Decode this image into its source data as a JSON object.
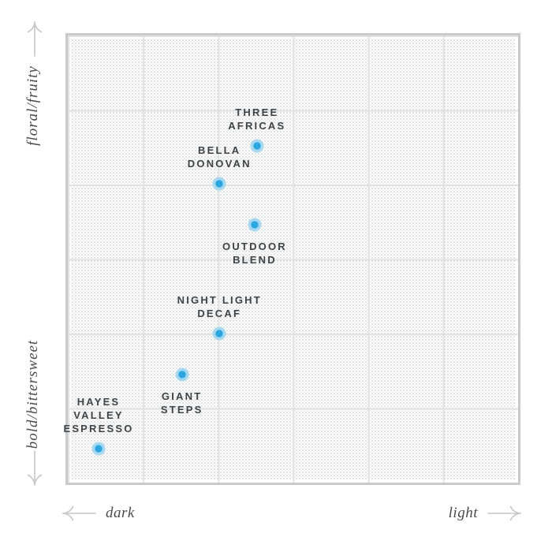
{
  "chart_data": {
    "type": "scatter",
    "title": "",
    "x_axis": {
      "min_label": "dark",
      "max_label": "light",
      "range": [
        0,
        6
      ]
    },
    "y_axis": {
      "min_label": "bold/bittersweet",
      "max_label": "floral/fruity",
      "range": [
        0,
        6
      ]
    },
    "grid": {
      "rows": 6,
      "columns": 6,
      "texture": "dotted-paper"
    },
    "legend": {
      "visible": false
    },
    "points": [
      {
        "name": "Three Africas",
        "label_lines": [
          "THREE",
          "AFRICAS"
        ],
        "x": 2.52,
        "y": 4.52,
        "label_position": "above"
      },
      {
        "name": "Bella Donovan",
        "label_lines": [
          "BELLA",
          "DONOVAN"
        ],
        "x": 2.02,
        "y": 4.01,
        "label_position": "above"
      },
      {
        "name": "Outdoor Blend",
        "label_lines": [
          "OUTDOOR",
          "BLEND"
        ],
        "x": 2.49,
        "y": 3.46,
        "label_position": "below"
      },
      {
        "name": "Night Light Decaf",
        "label_lines": [
          "NIGHT LIGHT",
          "DECAF"
        ],
        "x": 2.02,
        "y": 2.0,
        "label_position": "above"
      },
      {
        "name": "Giant Steps",
        "label_lines": [
          "GIANT",
          "STEPS"
        ],
        "x": 1.52,
        "y": 1.45,
        "label_position": "below"
      },
      {
        "name": "Hayes Valley Espresso",
        "label_lines": [
          "HAYES",
          "VALLEY",
          "ESPRESSO"
        ],
        "x": 0.41,
        "y": 0.45,
        "label_position": "above"
      }
    ]
  },
  "icons": {
    "y_axis_top": "arrow-up-icon",
    "y_axis_bottom": "arrow-down-icon",
    "x_axis_left": "arrow-left-icon",
    "x_axis_right": "arrow-right-icon"
  },
  "colors": {
    "dot_fill": "#2ba6df",
    "dot_halo": "#a7d8f1",
    "label_text": "#3d4347",
    "axis_text": "#4c4c4c",
    "arrow_color": "#c7c7c7",
    "grid_border": "#c8cbcd",
    "grid_line": "#dfe1e3",
    "dot_pattern_dark": "#d6d8d9",
    "dot_pattern_light": "#e8eaeb"
  }
}
